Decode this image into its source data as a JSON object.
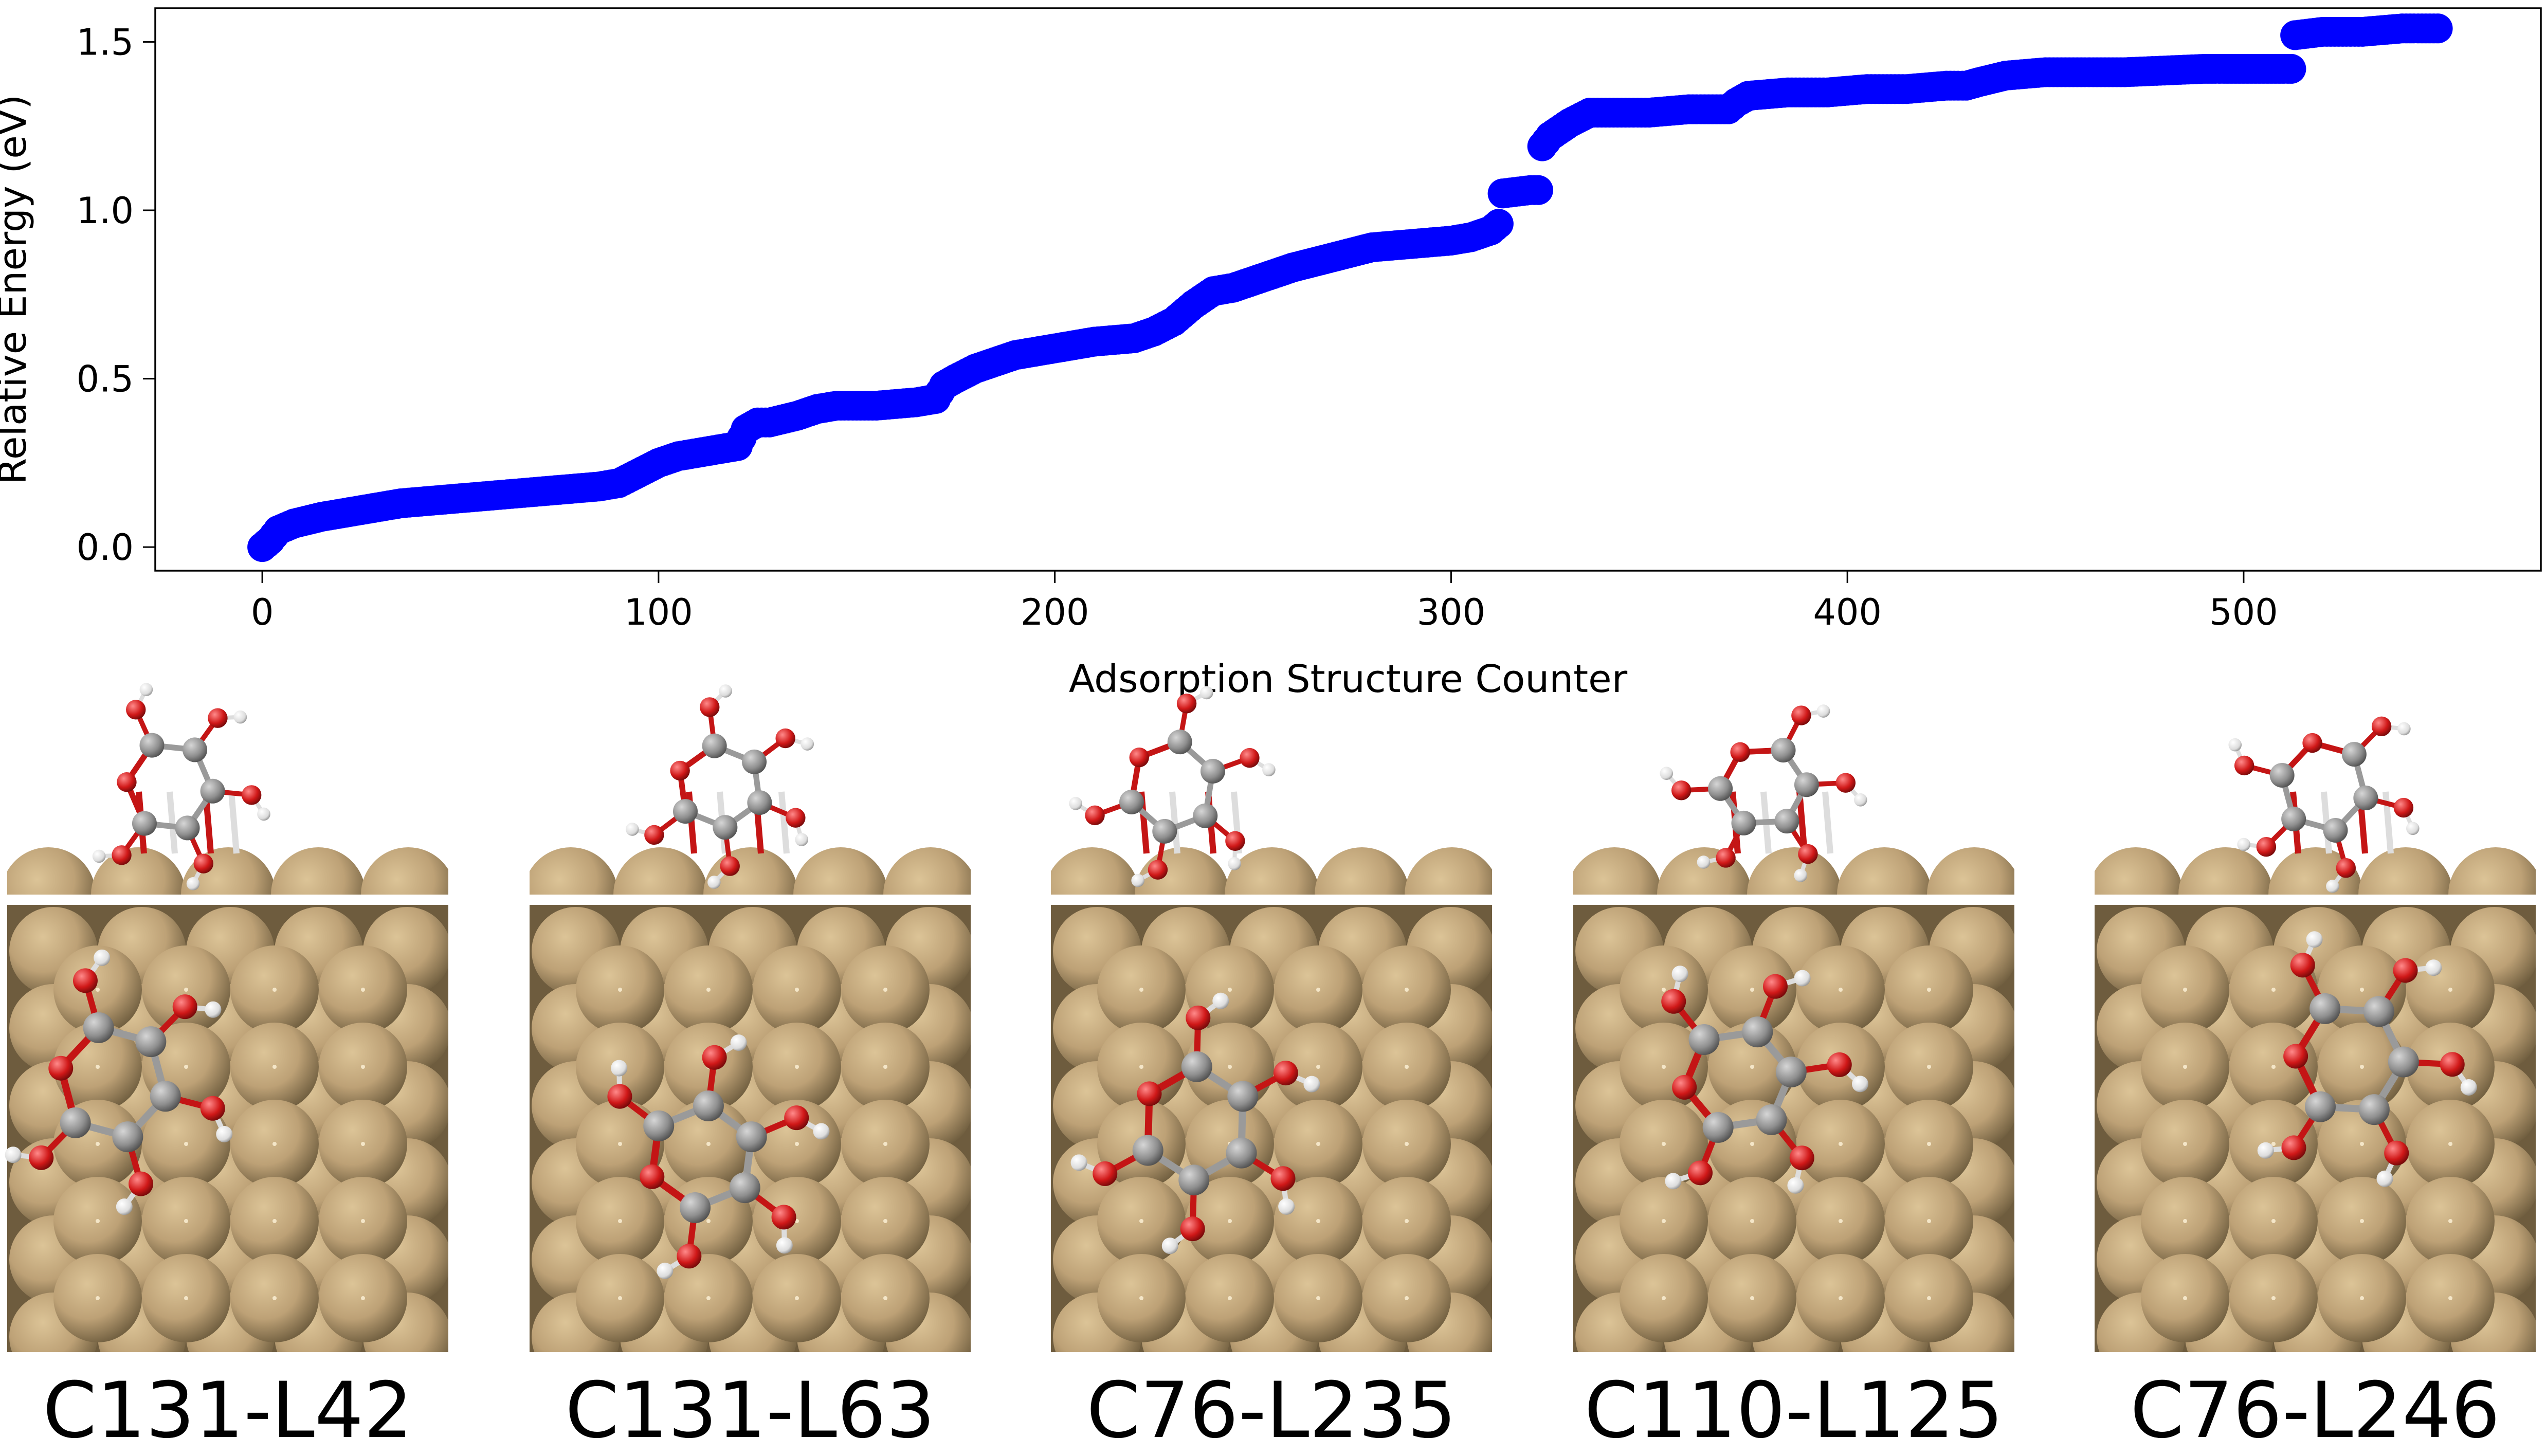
{
  "chart_data": {
    "type": "scatter",
    "title": "",
    "xlabel": "Adsorption Structure Counter",
    "ylabel": "Relative Energy (eV)",
    "xlim": [
      -27,
      575
    ],
    "ylim": [
      -0.07,
      1.6
    ],
    "xticks": [
      0,
      100,
      200,
      300,
      400,
      500
    ],
    "yticks": [
      0.0,
      0.5,
      1.0,
      1.5
    ],
    "xtick_labels": [
      "0",
      "100",
      "200",
      "300",
      "400",
      "500"
    ],
    "ytick_labels": [
      "0.0",
      "0.5",
      "1.0",
      "1.5"
    ],
    "grid": false,
    "legend": "none",
    "marker_color": "#0000ff",
    "marker": "circle",
    "n_points": 550,
    "series": [
      {
        "x": [
          0,
          1,
          2,
          4,
          8,
          15,
          25,
          35,
          45,
          55,
          65,
          75,
          85,
          90,
          95,
          100,
          105,
          110,
          115,
          120,
          122,
          125,
          128,
          135,
          140,
          145,
          155,
          165,
          170,
          172,
          175,
          180,
          185,
          190,
          195,
          200,
          210,
          220,
          225,
          230,
          235,
          240,
          245,
          250,
          260,
          270,
          280,
          290,
          300,
          305,
          310,
          312,
          313,
          320,
          322,
          323,
          325,
          330,
          335,
          340,
          350,
          360,
          370,
          372,
          375,
          385,
          395,
          405,
          415,
          425,
          430,
          433,
          440,
          450,
          470,
          490,
          500,
          510,
          512,
          513,
          520,
          530,
          540,
          549
        ],
        "y": [
          0.0,
          0.01,
          0.02,
          0.05,
          0.07,
          0.09,
          0.11,
          0.13,
          0.14,
          0.15,
          0.16,
          0.17,
          0.18,
          0.19,
          0.22,
          0.25,
          0.27,
          0.28,
          0.29,
          0.3,
          0.35,
          0.37,
          0.37,
          0.39,
          0.41,
          0.42,
          0.42,
          0.43,
          0.44,
          0.48,
          0.5,
          0.53,
          0.55,
          0.57,
          0.58,
          0.59,
          0.61,
          0.62,
          0.64,
          0.67,
          0.72,
          0.76,
          0.77,
          0.79,
          0.83,
          0.86,
          0.89,
          0.9,
          0.91,
          0.92,
          0.94,
          0.96,
          1.05,
          1.06,
          1.06,
          1.19,
          1.22,
          1.26,
          1.29,
          1.29,
          1.29,
          1.3,
          1.3,
          1.32,
          1.34,
          1.35,
          1.35,
          1.36,
          1.36,
          1.37,
          1.37,
          1.38,
          1.4,
          1.41,
          1.41,
          1.42,
          1.42,
          1.42,
          1.42,
          1.52,
          1.53,
          1.53,
          1.54,
          1.54
        ]
      }
    ]
  },
  "panels": [
    {
      "label": "C131-L42"
    },
    {
      "label": "C131-L63"
    },
    {
      "label": "C76-L235"
    },
    {
      "label": "C110-L125"
    },
    {
      "label": "C76-L246"
    }
  ],
  "colors": {
    "metal": "#c0a67a",
    "metal_dark": "#6b5a3c",
    "carbon": "#8f8f8f",
    "oxygen": "#d01818",
    "hydrogen": "#eeeeee",
    "bond_red": "#c41515"
  }
}
